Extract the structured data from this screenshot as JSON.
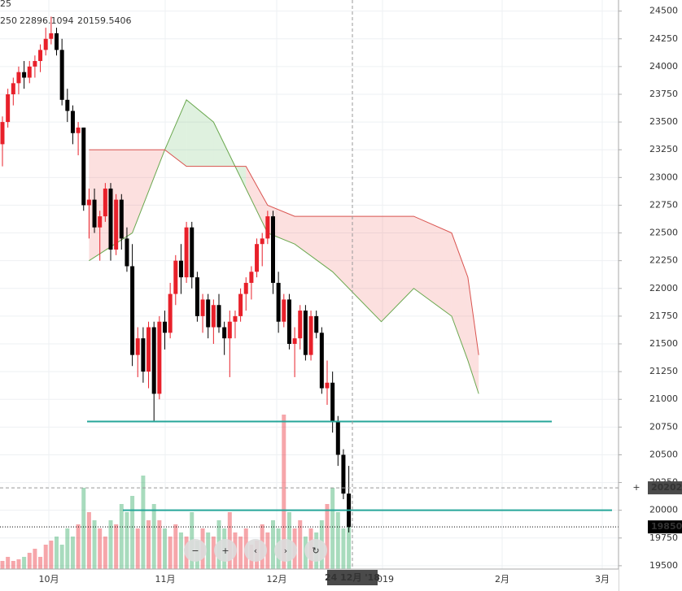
{
  "chart_data": {
    "type": "candlestick",
    "legend": [
      "25",
      "250",
      "22896.1094",
      "20159.5406"
    ],
    "ylim": [
      19470,
      24600
    ],
    "yticks": [
      19500,
      19750,
      20000,
      20250,
      20500,
      20750,
      21000,
      21250,
      21500,
      21750,
      22000,
      22250,
      22500,
      22750,
      23000,
      23250,
      23500,
      23750,
      24000,
      24250,
      24500
    ],
    "xlabels": [
      "10月",
      "11月",
      "12月",
      "2019",
      "2月",
      "3月"
    ],
    "crosshair": {
      "price": 20202,
      "time_label": "24 12月 '18"
    },
    "last_price": 19850,
    "hlines": [
      20800,
      20000
    ],
    "up_color": "#e8202a",
    "down_color": "#000000",
    "candles": [
      [
        23300,
        23550,
        23100,
        23500
      ],
      [
        23500,
        23800,
        23450,
        23750
      ],
      [
        23750,
        23900,
        23650,
        23850
      ],
      [
        23850,
        24000,
        23750,
        23950
      ],
      [
        23950,
        24050,
        23800,
        23900
      ],
      [
        23900,
        24050,
        23850,
        24000
      ],
      [
        24000,
        24100,
        23900,
        24050
      ],
      [
        24050,
        24200,
        23950,
        24150
      ],
      [
        24150,
        24350,
        24100,
        24250
      ],
      [
        24250,
        24450,
        24200,
        24300
      ],
      [
        24300,
        24350,
        24100,
        24150
      ],
      [
        24150,
        24250,
        23650,
        23700
      ],
      [
        23700,
        23800,
        23500,
        23600
      ],
      [
        23600,
        23650,
        23300,
        23400
      ],
      [
        23400,
        23500,
        23200,
        23450
      ],
      [
        23450,
        23450,
        22700,
        22750
      ],
      [
        22750,
        22900,
        22450,
        22800
      ],
      [
        22800,
        22900,
        22500,
        22550
      ],
      [
        22550,
        22700,
        22250,
        22650
      ],
      [
        22650,
        22950,
        22600,
        22900
      ],
      [
        22900,
        22950,
        22250,
        22350
      ],
      [
        22350,
        22850,
        22300,
        22800
      ],
      [
        22800,
        22850,
        22350,
        22450
      ],
      [
        22450,
        22550,
        22150,
        22200
      ],
      [
        22200,
        22400,
        21300,
        21400
      ],
      [
        21400,
        21650,
        21200,
        21550
      ],
      [
        21550,
        21650,
        21150,
        21250
      ],
      [
        21250,
        21700,
        21100,
        21650
      ],
      [
        21650,
        21700,
        20800,
        21050
      ],
      [
        21050,
        21750,
        21000,
        21700
      ],
      [
        21700,
        21800,
        21450,
        21600
      ],
      [
        21600,
        22050,
        21550,
        21950
      ],
      [
        21950,
        22300,
        21850,
        22250
      ],
      [
        22250,
        22400,
        21950,
        22100
      ],
      [
        22100,
        22600,
        22050,
        22550
      ],
      [
        22550,
        22600,
        22000,
        22100
      ],
      [
        22100,
        22150,
        21700,
        21750
      ],
      [
        21750,
        21950,
        21600,
        21900
      ],
      [
        21900,
        21950,
        21550,
        21650
      ],
      [
        21650,
        21900,
        21500,
        21850
      ],
      [
        21850,
        21950,
        21600,
        21650
      ],
      [
        21650,
        21700,
        21400,
        21550
      ],
      [
        21550,
        21800,
        21200,
        21700
      ],
      [
        21700,
        21800,
        21550,
        21750
      ],
      [
        21750,
        22000,
        21700,
        21950
      ],
      [
        21950,
        22100,
        21800,
        22050
      ],
      [
        22050,
        22200,
        21900,
        22150
      ],
      [
        22150,
        22450,
        22100,
        22400
      ],
      [
        22400,
        22500,
        22200,
        22450
      ],
      [
        22450,
        22700,
        22400,
        22650
      ],
      [
        22650,
        22700,
        21950,
        22050
      ],
      [
        22050,
        22150,
        21600,
        21700
      ],
      [
        21700,
        21950,
        21650,
        21900
      ],
      [
        21900,
        21950,
        21450,
        21500
      ],
      [
        21500,
        21650,
        21200,
        21550
      ],
      [
        21550,
        21850,
        21450,
        21800
      ],
      [
        21800,
        21850,
        21350,
        21400
      ],
      [
        21400,
        21800,
        21350,
        21750
      ],
      [
        21750,
        21800,
        21550,
        21600
      ],
      [
        21600,
        21650,
        21050,
        21100
      ],
      [
        21100,
        21350,
        20950,
        21150
      ],
      [
        21150,
        21250,
        20700,
        20800
      ],
      [
        20800,
        20850,
        20400,
        20500
      ],
      [
        20500,
        20550,
        20100,
        20150
      ],
      [
        20150,
        20400,
        19800,
        19850
      ]
    ],
    "vlim": [
      0,
      7
    ],
    "volume": [
      0.1,
      0.15,
      0.1,
      0.12,
      0.15,
      0.2,
      0.25,
      0.15,
      0.3,
      0.35,
      0.4,
      0.3,
      0.5,
      0.4,
      0.55,
      1.0,
      0.7,
      0.6,
      0.5,
      0.4,
      0.6,
      0.55,
      0.8,
      0.7,
      0.9,
      0.5,
      1.15,
      0.6,
      0.8,
      0.6,
      0.5,
      0.4,
      0.55,
      0.45,
      0.4,
      0.7,
      0.35,
      0.5,
      0.45,
      0.4,
      0.6,
      0.5,
      0.7,
      0.45,
      0.4,
      0.5,
      0.3,
      0.35,
      0.55,
      0.45,
      0.6,
      0.5,
      1.9,
      0.7,
      0.5,
      0.6,
      0.4,
      0.5,
      0.45,
      0.6,
      0.8,
      1.0,
      0.7,
      0.5,
      0.6
    ],
    "cloud": {
      "x": [
        16,
        24,
        30,
        34,
        39,
        45,
        49,
        54,
        61,
        70,
        76,
        83,
        86,
        88
      ],
      "span_a": [
        22250,
        22500,
        23250,
        23700,
        23500,
        22900,
        22500,
        22400,
        22150,
        21700,
        22000,
        21750,
        21350,
        21050
      ],
      "span_b": [
        23250,
        23250,
        23250,
        23100,
        23100,
        23100,
        22750,
        22650,
        22650,
        22650,
        22650,
        22500,
        22100,
        21400
      ]
    },
    "controls": [
      "−",
      "+",
      "‹",
      "›",
      "↻"
    ]
  }
}
